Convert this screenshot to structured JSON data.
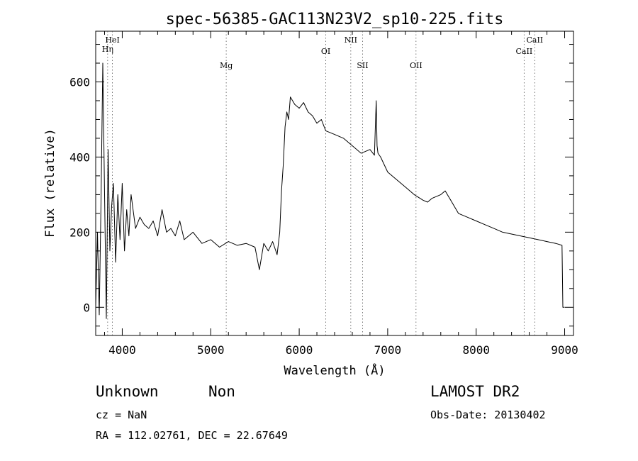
{
  "chart_data": {
    "type": "line",
    "title": "spec-56385-GAC113N23V2_sp10-225.fits",
    "xlabel": "Wavelength (Å)",
    "ylabel": "Flux (relative)",
    "xlim": [
      3700,
      9100
    ],
    "ylim": [
      -75,
      735
    ],
    "xticks": [
      4000,
      5000,
      6000,
      7000,
      8000,
      9000
    ],
    "yticks": [
      0,
      200,
      400,
      600
    ],
    "grid": false,
    "series": [
      {
        "color": "#000000",
        "x": [
          3700,
          3720,
          3740,
          3760,
          3780,
          3800,
          3820,
          3840,
          3860,
          3880,
          3900,
          3925,
          3950,
          3975,
          4000,
          4025,
          4050,
          4075,
          4100,
          4150,
          4200,
          4250,
          4300,
          4350,
          4400,
          4450,
          4500,
          4550,
          4600,
          4650,
          4700,
          4800,
          4900,
          5000,
          5100,
          5200,
          5300,
          5400,
          5500,
          5550,
          5600,
          5650,
          5700,
          5750,
          5780,
          5800,
          5820,
          5840,
          5860,
          5880,
          5900,
          5950,
          6000,
          6050,
          6100,
          6150,
          6200,
          6250,
          6300,
          6400,
          6500,
          6600,
          6700,
          6800,
          6850,
          6870,
          6880,
          6890,
          6920,
          7000,
          7100,
          7200,
          7300,
          7400,
          7450,
          7500,
          7600,
          7650,
          7700,
          7800,
          7900,
          8000,
          8100,
          8200,
          8300,
          8400,
          8500,
          8600,
          8700,
          8800,
          8900,
          8970,
          8980,
          9000
        ],
        "y": [
          0,
          200,
          -20,
          280,
          650,
          300,
          -30,
          420,
          150,
          270,
          330,
          120,
          300,
          180,
          330,
          150,
          260,
          190,
          300,
          210,
          240,
          220,
          210,
          230,
          190,
          260,
          200,
          210,
          190,
          230,
          180,
          200,
          170,
          180,
          160,
          175,
          165,
          170,
          160,
          100,
          170,
          150,
          175,
          140,
          200,
          310,
          380,
          480,
          520,
          500,
          560,
          540,
          530,
          545,
          520,
          510,
          490,
          500,
          470,
          460,
          450,
          430,
          410,
          420,
          405,
          550,
          430,
          410,
          400,
          360,
          340,
          320,
          300,
          285,
          280,
          290,
          300,
          310,
          290,
          250,
          240,
          230,
          220,
          210,
          200,
          195,
          190,
          185,
          180,
          175,
          170,
          165,
          0,
          0
        ]
      }
    ],
    "annotations": [
      {
        "label": "Hη",
        "x": 3835
      },
      {
        "label": "HeI",
        "x": 3889
      },
      {
        "label": "Mg",
        "x": 5175
      },
      {
        "label": "OI",
        "x": 6300
      },
      {
        "label": "NII",
        "x": 6583
      },
      {
        "label": "SII",
        "x": 6716
      },
      {
        "label": "OII",
        "x": 7320
      },
      {
        "label": "CaII",
        "x": 8542
      },
      {
        "label": "CaII",
        "x": 8662
      }
    ]
  },
  "footer": {
    "class_label": "Unknown",
    "subclass_label": "Non",
    "survey": "LAMOST DR2",
    "redshift": "cz = NaN",
    "obs_date": "Obs-Date: 20130402",
    "coords": "RA = 112.02761, DEC =  22.67649"
  }
}
